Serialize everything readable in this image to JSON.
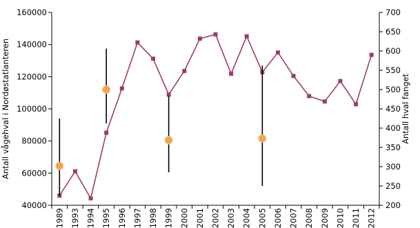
{
  "chart_data": {
    "type": "line",
    "title": "",
    "xlabel": "",
    "ylabel": "Antall vågehval i Nordøstatlanteren",
    "y2label": "Antall hval fanget",
    "ylim": [
      40000,
      160000
    ],
    "y2lim": [
      200,
      700
    ],
    "yticks": [
      "40000",
      "60000",
      "80000",
      "100000",
      "120000",
      "140000",
      "160000"
    ],
    "y2ticks": [
      "200",
      "250",
      "300",
      "350",
      "400",
      "450",
      "500",
      "550",
      "600",
      "650",
      "700"
    ],
    "categories": [
      "1989",
      "1993",
      "1994",
      "1995",
      "1996",
      "1997",
      "1998",
      "1999",
      "2000",
      "2001",
      "2002",
      "2003",
      "2004",
      "2005",
      "2006",
      "2007",
      "2008",
      "2009",
      "2010",
      "2011",
      "2012"
    ],
    "series": [
      {
        "axis": "right",
        "kind": "line-marker",
        "color": "#9b3d6e",
        "marker": "square",
        "values": [
          225,
          288,
          218,
          388,
          503,
          622,
          580,
          487,
          548,
          632,
          643,
          541,
          638,
          545,
          596,
          535,
          483,
          469,
          522,
          462,
          590
        ]
      },
      {
        "axis": "left",
        "kind": "point-errorbar",
        "color": "#f5a34a",
        "marker": "circle",
        "points": [
          {
            "x": "1989",
            "y": 64500,
            "low": 46000,
            "high": 94000
          },
          {
            "x": "1995",
            "y": 112000,
            "low": 91000,
            "high": 137500
          },
          {
            "x": "1999",
            "y": 80500,
            "low": 60500,
            "high": 108000
          },
          {
            "x": "2005",
            "y": 81500,
            "low": 52000,
            "high": 127000
          }
        ]
      }
    ],
    "grid": false,
    "legend": "none"
  }
}
